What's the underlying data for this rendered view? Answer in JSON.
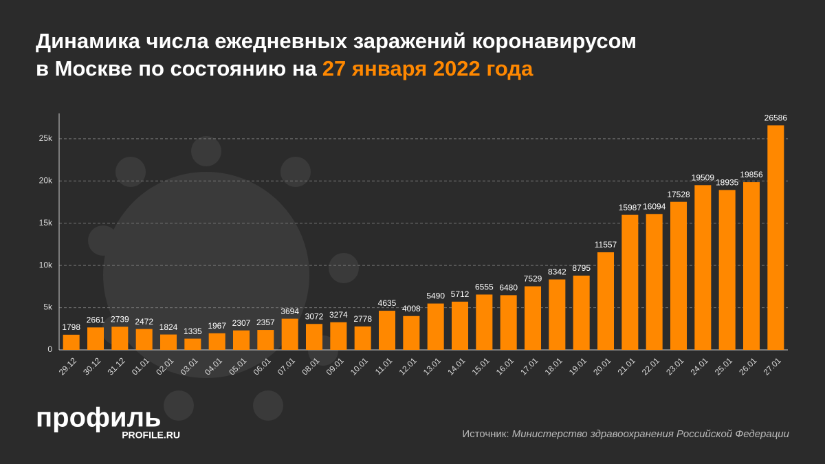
{
  "chart_data": {
    "type": "bar",
    "title": "Динамика числа ежедневных заражений коронавирусом в Москве по состоянию на",
    "title_highlight": "27 января 2022 года",
    "categories": [
      "29.12",
      "30.12",
      "31.12",
      "01.01",
      "02.01",
      "03.01",
      "04.01",
      "05.01",
      "06.01",
      "07.01",
      "08.01",
      "09.01",
      "10.01",
      "11.01",
      "12.01",
      "13.01",
      "14.01",
      "15.01",
      "16.01",
      "17.01",
      "18.01",
      "19.01",
      "20.01",
      "21.01",
      "22.01",
      "23.01",
      "24.01",
      "25.01",
      "26.01",
      "27.01"
    ],
    "values": [
      1798,
      2661,
      2739,
      2472,
      1824,
      1335,
      1967,
      2307,
      2357,
      3694,
      3072,
      3274,
      2778,
      4635,
      4008,
      5490,
      5712,
      6555,
      6480,
      7529,
      8342,
      8795,
      11557,
      15987,
      16094,
      17528,
      19509,
      18935,
      19856,
      26586
    ],
    "color": "#ff8800",
    "ylim": [
      0,
      28000
    ],
    "yticks": [
      0,
      {
        "value": 5000,
        "label": "5k"
      },
      {
        "value": 10000,
        "label": "10k"
      },
      {
        "value": 15000,
        "label": "15k"
      },
      {
        "value": 20000,
        "label": "20k"
      },
      {
        "value": 25000,
        "label": "25k"
      }
    ],
    "grid": true,
    "source_label": "Источник:",
    "source": "Министерство здравоохранения Российской Федерации",
    "logo": "профиль",
    "logo_url": "PROFILE.RU"
  }
}
